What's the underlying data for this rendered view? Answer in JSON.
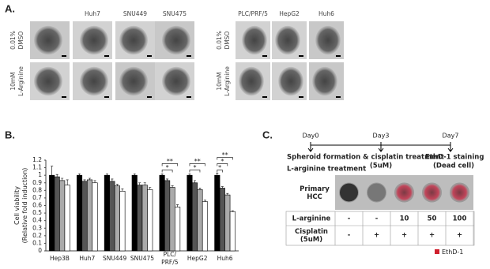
{
  "panel_labels": [
    "A.",
    "B.",
    "C."
  ],
  "panel_a": {
    "left_columns": [
      "Huh7",
      "SNU449",
      "SNU475"
    ],
    "right_columns": [
      "PLC/PRF/5",
      "HepG2",
      "Huh6"
    ],
    "rows": [
      "0.01%\nDMSO",
      "10mM\nL-Arginine"
    ]
  },
  "chart_data": {
    "type": "bar",
    "y_label": "Cell viability\n(Relative fold induction)",
    "categories": [
      "Hep3B",
      "Huh7",
      "SNU449",
      "SNU475",
      "PLC/\nPRF/5",
      "HepG2",
      "Huh6"
    ],
    "series": [
      {
        "color": "#000000",
        "values": [
          1.0,
          1.0,
          1.0,
          1.0,
          1.0,
          1.0,
          1.0
        ],
        "errors": [
          0.12,
          0.02,
          0.02,
          0.02,
          0.02,
          0.02,
          0.03
        ]
      },
      {
        "color": "#555555",
        "values": [
          0.98,
          0.92,
          0.92,
          0.87,
          0.93,
          0.9,
          0.83
        ],
        "errors": [
          0.03,
          0.02,
          0.03,
          0.03,
          0.02,
          0.03,
          0.02
        ]
      },
      {
        "color": "#aaaaaa",
        "values": [
          0.93,
          0.94,
          0.86,
          0.87,
          0.84,
          0.81,
          0.74
        ],
        "errors": [
          0.03,
          0.02,
          0.02,
          0.03,
          0.02,
          0.02,
          0.02
        ]
      },
      {
        "color": "#ffffff",
        "values": [
          0.87,
          0.9,
          0.79,
          0.81,
          0.58,
          0.65,
          0.52
        ],
        "errors": [
          0.07,
          0.03,
          0.03,
          0.03,
          0.03,
          0.02,
          0.01
        ]
      }
    ],
    "ylim": [
      0,
      1.2
    ],
    "yticks": [
      0,
      0.1,
      0.2,
      0.3,
      0.4,
      0.5,
      0.6,
      0.7,
      0.8,
      0.9,
      1,
      1.1,
      1.2
    ],
    "significance": [
      null,
      null,
      null,
      null,
      [
        "**",
        "*"
      ],
      [
        "**",
        "*"
      ],
      [
        "**",
        "*",
        "*"
      ]
    ]
  },
  "panel_c": {
    "timeline": [
      "Day0",
      "Day3",
      "Day7"
    ],
    "steps": [
      "Spheroid formation & cisplatin treatment",
      "L-arginine treatment",
      "(5uM)",
      "EthD-1 staining",
      "(Dead cell)"
    ],
    "row_label": "Primary\nHCC",
    "table": {
      "rows": [
        {
          "label": "L-arginine",
          "cells": [
            "-",
            "-",
            "10",
            "50",
            "100"
          ]
        },
        {
          "label": "Cisplatin\n(5uM)",
          "cells": [
            "-",
            "+",
            "+",
            "+",
            "+"
          ]
        }
      ]
    },
    "legend": "EthD-1"
  }
}
